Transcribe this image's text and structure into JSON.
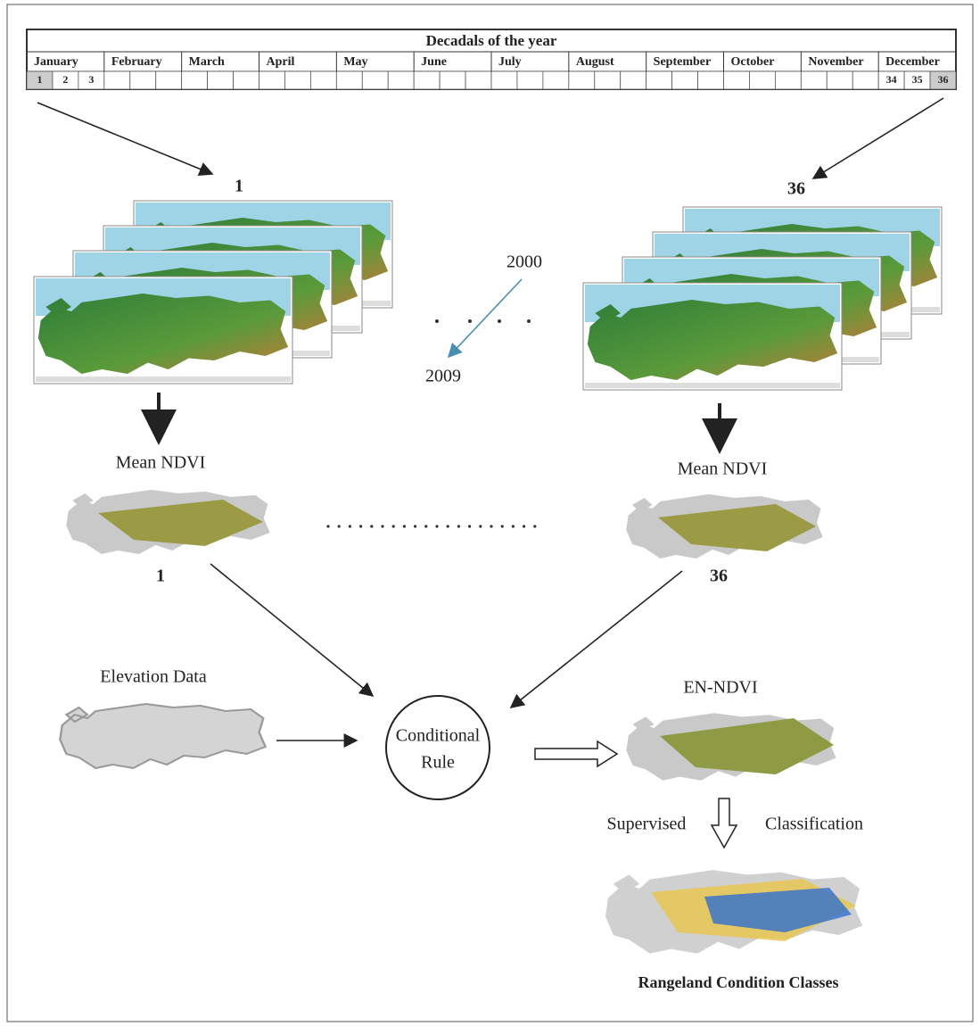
{
  "table": {
    "title": "Decadals of the year",
    "months": [
      "January",
      "February",
      "March",
      "April",
      "May",
      "June",
      "July",
      "August",
      "September",
      "October",
      "November",
      "December"
    ],
    "first_decadals": [
      "1",
      "2",
      "3"
    ],
    "last_decadals": [
      "34",
      "35",
      "36"
    ]
  },
  "stacks": [
    {
      "label": "1"
    },
    {
      "label": "36"
    }
  ],
  "years": {
    "start": "2000",
    "end": "2009"
  },
  "mean_ndvi": [
    {
      "title": "Mean NDVI",
      "label": "1"
    },
    {
      "title": "Mean NDVI",
      "label": "36"
    }
  ],
  "elevation": {
    "title": "Elevation Data"
  },
  "rule": {
    "lines": [
      "Conditional",
      "Rule"
    ]
  },
  "en_ndvi": {
    "title": "EN-NDVI"
  },
  "classification": {
    "left": "Supervised",
    "right": "Classification"
  },
  "result": {
    "title": "Rangeland Condition Classes"
  }
}
